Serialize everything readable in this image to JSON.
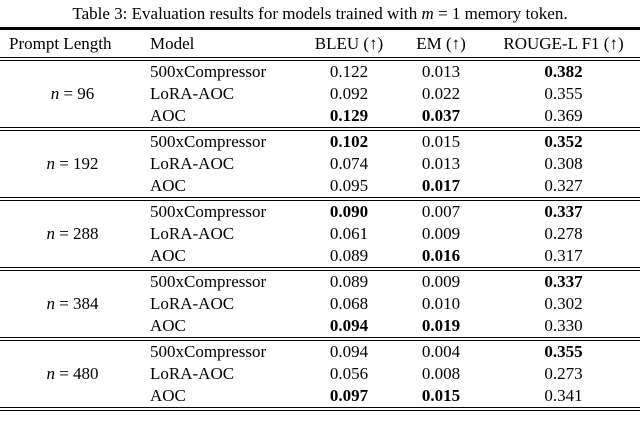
{
  "title": {
    "part1": "Table 3: Evaluation results for models trained with ",
    "math_var": "m",
    "part2": " = 1 memory token."
  },
  "table": {
    "headers": {
      "prompt_length": "Prompt Length",
      "model": "Model",
      "bleu": "BLEU (↑)",
      "em": "EM (↑)",
      "rouge": "ROUGE-L F1 (↑)"
    },
    "groups": [
      {
        "label_var": "n",
        "label_eq": " = 96",
        "rows": [
          {
            "model": "500xCompressor",
            "bleu": "0.122",
            "em": "0.013",
            "rouge": "0.382"
          },
          {
            "model": "LoRA-AOC",
            "bleu": "0.092",
            "em": "0.022",
            "rouge": "0.355"
          },
          {
            "model": "AOC",
            "bleu": "0.129",
            "em": "0.037",
            "rouge": "0.369"
          }
        ]
      },
      {
        "label_var": "n",
        "label_eq": " = 192",
        "rows": [
          {
            "model": "500xCompressor",
            "bleu": "0.102",
            "em": "0.015",
            "rouge": "0.352"
          },
          {
            "model": "LoRA-AOC",
            "bleu": "0.074",
            "em": "0.013",
            "rouge": "0.308"
          },
          {
            "model": "AOC",
            "bleu": "0.095",
            "em": "0.017",
            "rouge": "0.327"
          }
        ]
      },
      {
        "label_var": "n",
        "label_eq": " = 288",
        "rows": [
          {
            "model": "500xCompressor",
            "bleu": "0.090",
            "em": "0.007",
            "rouge": "0.337"
          },
          {
            "model": "LoRA-AOC",
            "bleu": "0.061",
            "em": "0.009",
            "rouge": "0.278"
          },
          {
            "model": "AOC",
            "bleu": "0.089",
            "em": "0.016",
            "rouge": "0.317"
          }
        ]
      },
      {
        "label_var": "n",
        "label_eq": " = 384",
        "rows": [
          {
            "model": "500xCompressor",
            "bleu": "0.089",
            "em": "0.009",
            "rouge": "0.337"
          },
          {
            "model": "LoRA-AOC",
            "bleu": "0.068",
            "em": "0.010",
            "rouge": "0.302"
          },
          {
            "model": "AOC",
            "bleu": "0.094",
            "em": "0.019",
            "rouge": "0.330"
          }
        ]
      },
      {
        "label_var": "n",
        "label_eq": " = 480",
        "rows": [
          {
            "model": "500xCompressor",
            "bleu": "0.094",
            "em": "0.004",
            "rouge": "0.355"
          },
          {
            "model": "LoRA-AOC",
            "bleu": "0.056",
            "em": "0.008",
            "rouge": "0.273"
          },
          {
            "model": "AOC",
            "bleu": "0.097",
            "em": "0.015",
            "rouge": "0.341"
          }
        ]
      }
    ]
  }
}
